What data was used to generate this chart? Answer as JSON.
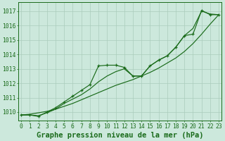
{
  "title": "Graphe pression niveau de la mer (hPa)",
  "hours": [
    0,
    1,
    2,
    3,
    4,
    5,
    6,
    7,
    8,
    9,
    10,
    11,
    12,
    13,
    14,
    15,
    16,
    17,
    18,
    19,
    20,
    21,
    22,
    23
  ],
  "zigzag": [
    1009.8,
    1009.8,
    1009.7,
    1010.0,
    1010.3,
    1010.7,
    1011.1,
    1011.5,
    1011.9,
    1013.2,
    1013.25,
    1013.25,
    1013.1,
    1012.5,
    1012.5,
    1013.2,
    1013.6,
    1013.9,
    1014.5,
    1015.3,
    1015.4,
    1017.05,
    1016.75,
    1016.75
  ],
  "smooth": [
    1009.8,
    1009.8,
    1009.75,
    1009.95,
    1010.2,
    1010.6,
    1010.9,
    1011.2,
    1011.6,
    1012.1,
    1012.5,
    1012.8,
    1013.0,
    1012.5,
    1012.5,
    1013.2,
    1013.6,
    1013.9,
    1014.5,
    1015.3,
    1015.8,
    1017.0,
    1016.8,
    1016.75
  ],
  "trend": [
    1009.8,
    1009.85,
    1009.95,
    1010.05,
    1010.2,
    1010.4,
    1010.6,
    1010.85,
    1011.1,
    1011.35,
    1011.6,
    1011.85,
    1012.05,
    1012.25,
    1012.5,
    1012.75,
    1013.05,
    1013.4,
    1013.75,
    1014.2,
    1014.75,
    1015.4,
    1016.1,
    1016.75
  ],
  "ylim_min": 1009.4,
  "ylim_max": 1017.6,
  "yticks": [
    1010,
    1011,
    1012,
    1013,
    1014,
    1015,
    1016,
    1017
  ],
  "line_color": "#1a6b1a",
  "bg_color": "#cce8dc",
  "grid_color": "#aaccbb",
  "title_fontsize": 7.5,
  "tick_fontsize": 5.8
}
